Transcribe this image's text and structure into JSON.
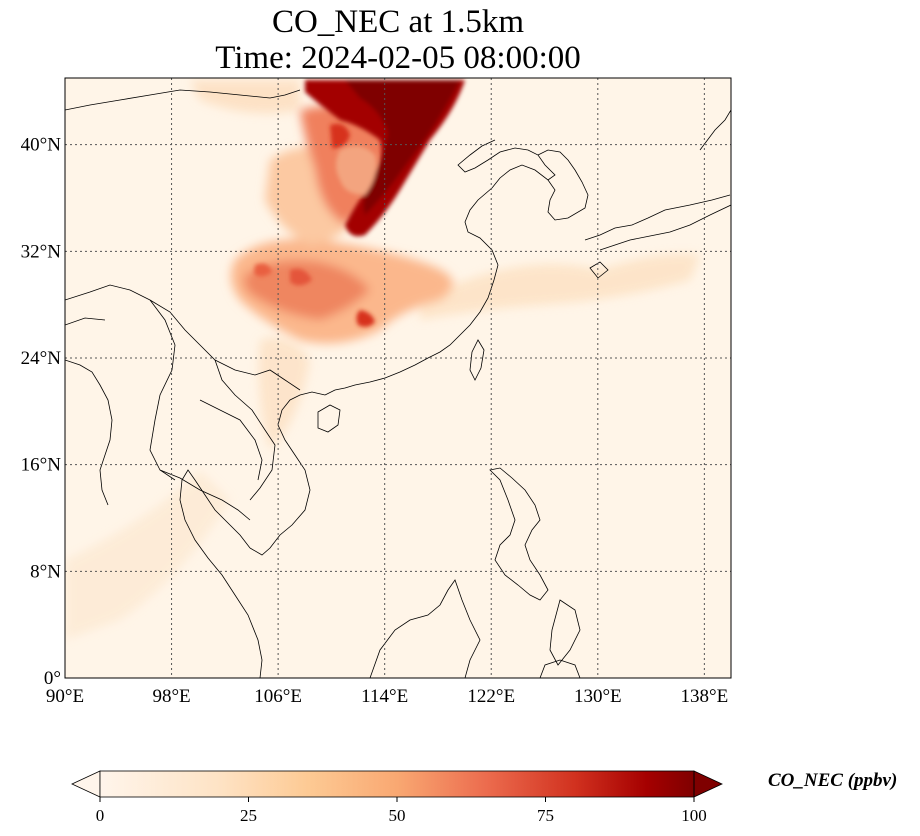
{
  "title_line1": "CO_NEC at 1.5km",
  "title_line2": "Time: 2024-02-05 08:00:00",
  "map": {
    "lon_range": [
      90,
      140
    ],
    "lat_range": [
      0,
      45
    ],
    "lon_ticks": [
      {
        "value": 90,
        "label": "90°E"
      },
      {
        "value": 98,
        "label": "98°E"
      },
      {
        "value": 106,
        "label": "106°E"
      },
      {
        "value": 114,
        "label": "114°E"
      },
      {
        "value": 122,
        "label": "122°E"
      },
      {
        "value": 130,
        "label": "130°E"
      },
      {
        "value": 138,
        "label": "138°E"
      }
    ],
    "lat_ticks": [
      {
        "value": 0,
        "label": "0°"
      },
      {
        "value": 8,
        "label": "8°N"
      },
      {
        "value": 16,
        "label": "16°N"
      },
      {
        "value": 24,
        "label": "24°N"
      },
      {
        "value": 32,
        "label": "32°N"
      },
      {
        "value": 40,
        "label": "40°N"
      }
    ],
    "gridlines": true,
    "colormap": "OrRd",
    "background_color": "#fff5e8"
  },
  "colorbar": {
    "label": "CO_NEC (ppbv)",
    "min": 0,
    "max": 100,
    "ticks": [
      {
        "value": 0,
        "label": "0"
      },
      {
        "value": 25,
        "label": "25"
      },
      {
        "value": 50,
        "label": "50"
      },
      {
        "value": 75,
        "label": "75"
      },
      {
        "value": 100,
        "label": "100"
      }
    ],
    "extend": "both",
    "colors": [
      "#fff5eb",
      "#fee6ce",
      "#fdd0a2",
      "#fdae6b",
      "#f16913",
      "#d7301f",
      "#b30000",
      "#7f0000"
    ]
  }
}
